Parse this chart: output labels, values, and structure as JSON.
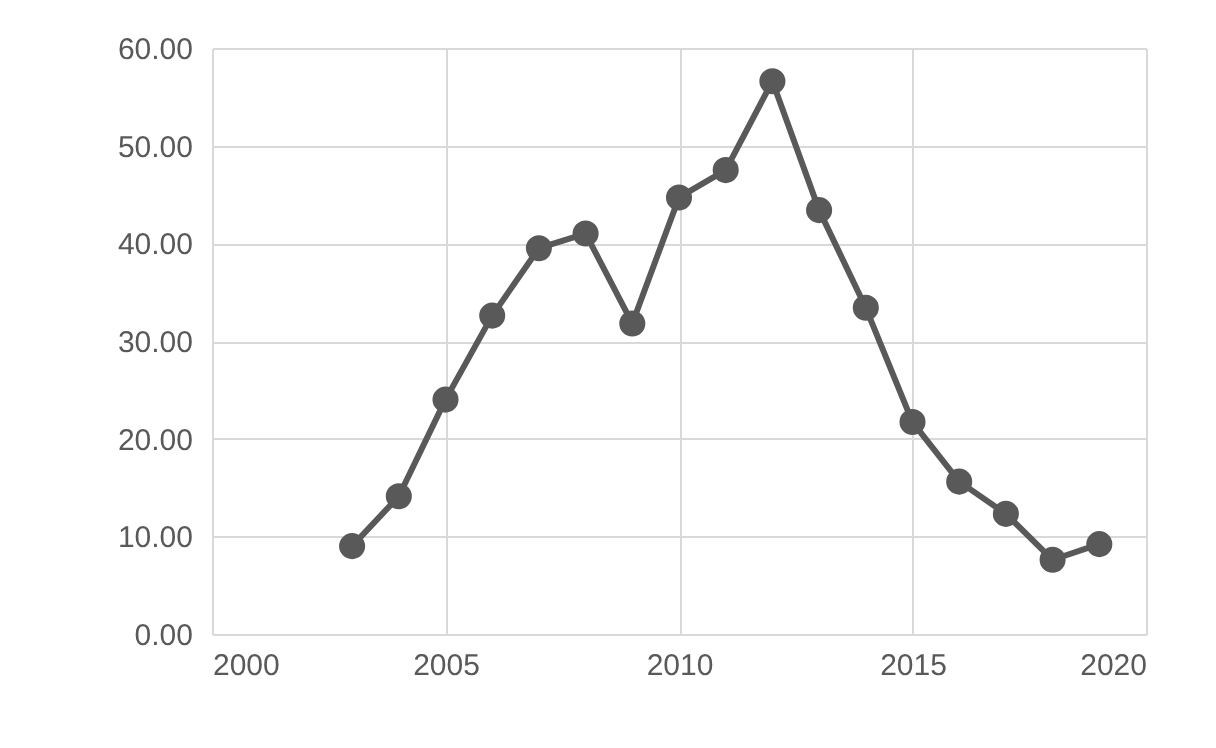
{
  "chart_data": {
    "type": "line",
    "x": [
      2003,
      2004,
      2005,
      2006,
      2007,
      2008,
      2009,
      2010,
      2011,
      2012,
      2013,
      2014,
      2015,
      2016,
      2017,
      2018,
      2019
    ],
    "series": [
      {
        "color": "#595959",
        "values": [
          9.0,
          14.1,
          24.0,
          32.6,
          39.5,
          41.0,
          31.8,
          44.7,
          47.5,
          56.6,
          43.4,
          33.4,
          21.7,
          15.6,
          12.3,
          7.6,
          9.2
        ]
      }
    ],
    "xlim": [
      2000,
      2020
    ],
    "xticks": [
      2000,
      2005,
      2010,
      2015,
      2020
    ],
    "ylim": [
      0,
      60
    ],
    "yticks": [
      {
        "value": 0,
        "label": "0.00"
      },
      {
        "value": 10,
        "label": "10.00"
      },
      {
        "value": 20,
        "label": "20.00"
      },
      {
        "value": 30,
        "label": "30.00"
      },
      {
        "value": 40,
        "label": "40.00"
      },
      {
        "value": 50,
        "label": "50.00"
      },
      {
        "value": 60,
        "label": "60.00"
      }
    ],
    "grid": true,
    "marker": "circle",
    "line_style": "solid"
  }
}
